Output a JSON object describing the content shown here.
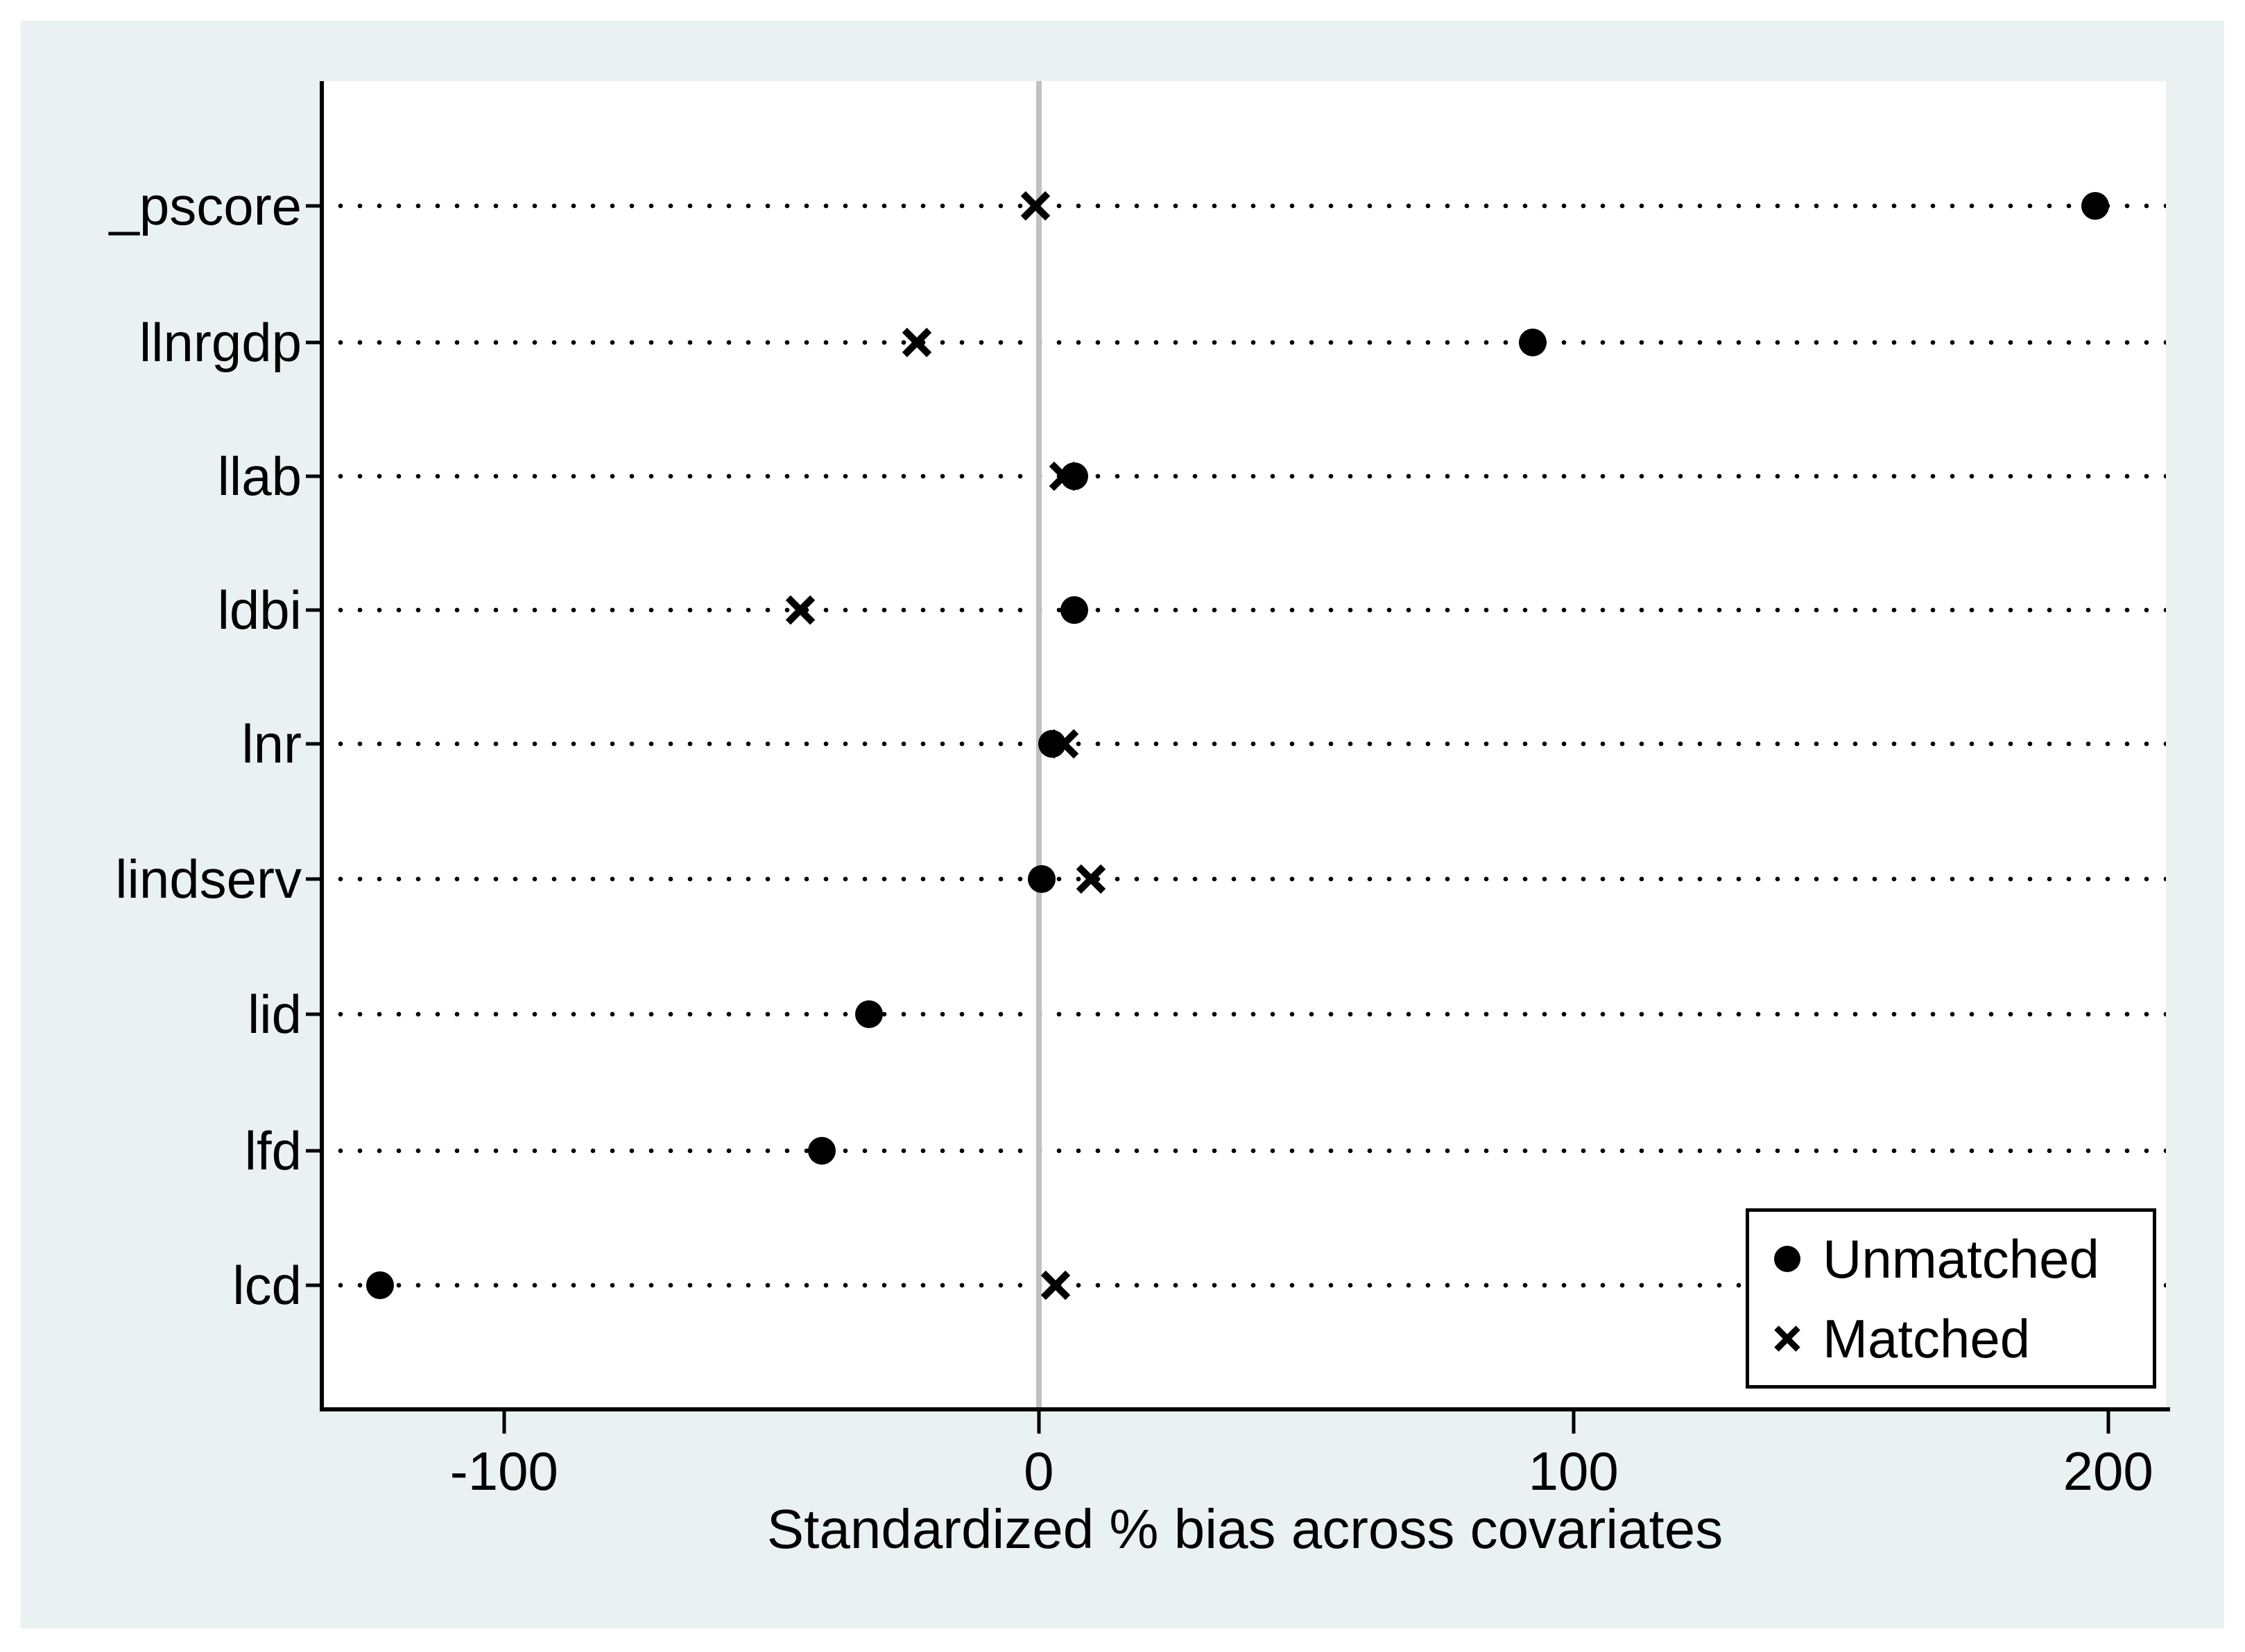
{
  "figure": {
    "canvas_color": "#e9f1f2",
    "plot_background": "#ffffff",
    "axis_color": "#000000",
    "zero_line_color": "#c0c0c0",
    "marker_color": "#000000"
  },
  "chart_data": {
    "type": "scatter",
    "subtype": "horizontal-dot-plot",
    "title": "",
    "xlabel": "Standardized % bias across covariates",
    "ylabel": "",
    "categories": [
      "_pscore",
      "llnrgdp",
      "llab",
      "ldbi",
      "lnr",
      "lindserv",
      "lid",
      "lfd",
      "lcd"
    ],
    "x_ticks": [
      -100,
      0,
      100,
      200
    ],
    "x_tick_labels": [
      "-100",
      "0",
      "100",
      "200"
    ],
    "xlim": [
      -133.7,
      210.8
    ],
    "zero_reference_line": 0,
    "grid": "dotted horizontal line per category",
    "legend_position": "bottom-right",
    "series": [
      {
        "name": "Unmatched",
        "marker": "filled-circle",
        "values": [
          197.6,
          92.4,
          6.7,
          6.7,
          2.5,
          0.6,
          -31.7,
          -40.6,
          -123.2
        ]
      },
      {
        "name": "Matched",
        "marker": "x",
        "values": [
          -0.6,
          -22.8,
          4.7,
          -44.6,
          4.7,
          9.8,
          null,
          null,
          3.2
        ]
      }
    ]
  }
}
